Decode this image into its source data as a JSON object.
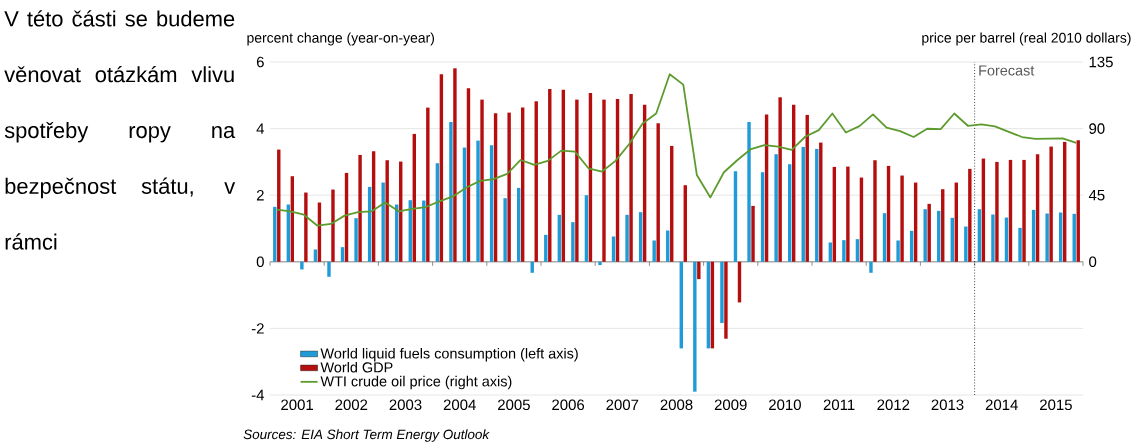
{
  "chart_data": {
    "type": "bar",
    "xlabel": null,
    "ylabel": "percent change (year-on-year)",
    "y2label": "price per barrel (real 2010 dollars)",
    "x": [
      2001.125,
      2001.375,
      2001.625,
      2001.875,
      2002.125,
      2002.375,
      2002.625,
      2002.875,
      2003.125,
      2003.375,
      2003.625,
      2003.875,
      2004.125,
      2004.375,
      2004.625,
      2004.875,
      2005.125,
      2005.375,
      2005.625,
      2005.875,
      2006.125,
      2006.375,
      2006.625,
      2006.875,
      2007.125,
      2007.375,
      2007.625,
      2007.875,
      2008.125,
      2008.375,
      2008.625,
      2008.875,
      2009.125,
      2009.375,
      2009.625,
      2009.875,
      2010.125,
      2010.375,
      2010.625,
      2010.875,
      2011.125,
      2011.375,
      2011.625,
      2011.875,
      2012.125,
      2012.375,
      2012.625,
      2012.875,
      2013.125,
      2013.375,
      2013.625,
      2013.875,
      2014.125,
      2014.375,
      2014.625,
      2014.875,
      2015.125,
      2015.375,
      2015.625,
      2015.875
    ],
    "series": [
      {
        "name": "World liquid fuels consumption (left axis)",
        "color": "#1f9bd7",
        "values": [
          1.65,
          1.72,
          -0.23,
          0.37,
          -0.45,
          0.44,
          1.31,
          2.25,
          2.38,
          1.72,
          1.85,
          1.84,
          2.96,
          4.2,
          3.43,
          3.64,
          3.5,
          1.91,
          2.22,
          -0.33,
          0.81,
          1.41,
          1.19,
          2.0,
          -0.1,
          0.76,
          1.41,
          1.49,
          0.64,
          0.94,
          -2.6,
          -3.9,
          -2.6,
          -1.84,
          2.72,
          4.2,
          2.69,
          3.23,
          2.93,
          3.45,
          3.39,
          0.58,
          0.65,
          0.68,
          -0.33,
          1.46,
          0.64,
          0.93,
          1.58,
          1.53,
          1.32,
          1.06,
          1.58,
          1.42,
          1.33,
          1.02,
          1.56,
          1.45,
          1.48,
          1.44
        ]
      },
      {
        "name": "World GDP",
        "color": "#b40e0e",
        "values": [
          3.37,
          2.57,
          2.08,
          1.78,
          2.17,
          2.67,
          3.21,
          3.32,
          3.05,
          3.01,
          3.84,
          4.63,
          5.63,
          5.81,
          5.21,
          4.87,
          4.46,
          4.48,
          4.63,
          4.82,
          5.19,
          5.17,
          4.87,
          5.07,
          4.87,
          4.89,
          5.04,
          4.72,
          4.16,
          3.48,
          2.3,
          -0.52,
          -2.6,
          -2.31,
          -1.22,
          1.68,
          4.42,
          4.94,
          4.72,
          4.41,
          3.58,
          2.85,
          2.86,
          2.53,
          3.05,
          2.88,
          2.59,
          2.38,
          1.74,
          2.18,
          2.38,
          2.79,
          3.1,
          3.0,
          3.06,
          3.06,
          3.23,
          3.46,
          3.6,
          3.65
        ]
      },
      {
        "name": "WTI crude oil price (right axis)",
        "type": "line",
        "axis": "y2",
        "color": "#5d9b2e",
        "values": [
          35.2,
          34.1,
          31.8,
          24.4,
          25.6,
          31.2,
          33.6,
          34.1,
          40.1,
          34.1,
          35.7,
          37.0,
          40.8,
          44.2,
          50.2,
          54.7,
          55.8,
          59.4,
          68.8,
          65.5,
          68.2,
          75.1,
          74.4,
          63.2,
          61.0,
          68.2,
          79.4,
          93.5,
          100.2,
          126.7,
          119.7,
          58.7,
          43.5,
          60.5,
          68.8,
          76.2,
          78.9,
          77.8,
          75.6,
          84.5,
          89.0,
          100.2,
          87.4,
          91.7,
          99.6,
          90.6,
          88.3,
          84.3,
          89.9,
          89.7,
          100.2,
          91.9,
          92.8,
          91.5,
          87.9,
          84.3,
          83.0,
          83.2,
          83.4,
          80.3
        ]
      }
    ],
    "xlim": [
      2001,
      2016
    ],
    "xticks": [
      {
        "value": 2001,
        "label": null
      },
      {
        "value": 2001.5,
        "label": "2001"
      },
      {
        "value": 2002,
        "label": null
      },
      {
        "value": 2002.5,
        "label": "2002"
      },
      {
        "value": 2003,
        "label": null
      },
      {
        "value": 2003.5,
        "label": "2003"
      },
      {
        "value": 2004,
        "label": null
      },
      {
        "value": 2004.5,
        "label": "2004"
      },
      {
        "value": 2005,
        "label": null
      },
      {
        "value": 2005.5,
        "label": "2005"
      },
      {
        "value": 2006,
        "label": null
      },
      {
        "value": 2006.5,
        "label": "2006"
      },
      {
        "value": 2007,
        "label": null
      },
      {
        "value": 2007.5,
        "label": "2007"
      },
      {
        "value": 2008,
        "label": null
      },
      {
        "value": 2008.5,
        "label": "2008"
      },
      {
        "value": 2009,
        "label": null
      },
      {
        "value": 2009.5,
        "label": "2009"
      },
      {
        "value": 2010,
        "label": null
      },
      {
        "value": 2010.5,
        "label": "2010"
      },
      {
        "value": 2011,
        "label": null
      },
      {
        "value": 2011.5,
        "label": "2011"
      },
      {
        "value": 2012,
        "label": null
      },
      {
        "value": 2012.5,
        "label": "2012"
      },
      {
        "value": 2013,
        "label": null
      },
      {
        "value": 2013.5,
        "label": "2013"
      },
      {
        "value": 2014,
        "label": null
      },
      {
        "value": 2014.5,
        "label": "2014"
      },
      {
        "value": 2015,
        "label": null
      },
      {
        "value": 2015.5,
        "label": "2015"
      },
      {
        "value": 2016,
        "label": null
      }
    ],
    "ylim": [
      -4,
      6
    ],
    "yticks": [
      -4,
      -2,
      0,
      2,
      4,
      6
    ],
    "y2lim": [
      -90,
      135
    ],
    "y2ticks": [
      0,
      45,
      90,
      135
    ],
    "ref_lines": [
      {
        "axis": "x",
        "value": 2014,
        "label": "Forecast",
        "color": "#222222",
        "line_style": "dotted"
      }
    ],
    "annotations": [
      "Sources: EIA Short Term Energy Outlook",
      "V této části se budeme věnovat otázkám vlivu spotřeby ropy na bezpečnost státu, v rámci"
    ],
    "grid": "y",
    "legend": "bottom left",
    "marker": "none",
    "line_style": "solid"
  }
}
